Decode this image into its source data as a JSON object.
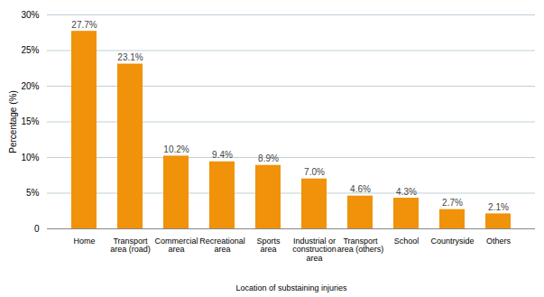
{
  "chart_data": {
    "type": "bar",
    "categories": [
      "Home",
      "Transport\narea (road)",
      "Commercial\narea",
      "Recreational\narea",
      "Sports\narea",
      "Industrial or\nconstruction\narea",
      "Transport\narea (others)",
      "School",
      "Countryside",
      "Others"
    ],
    "values": [
      27.7,
      23.1,
      10.2,
      9.4,
      8.9,
      7.0,
      4.6,
      4.3,
      2.7,
      2.1
    ],
    "value_labels": [
      "27.7%",
      "23.1%",
      "10.2%",
      "9.4%",
      "8.9%",
      "7.0%",
      "4.6%",
      "4.3%",
      "2.7%",
      "2.1%"
    ],
    "data_labels": true,
    "color": "#F0920A",
    "xlabel": "Location of substaining injuries",
    "ylabel": "Percentage (%)",
    "ylim": [
      0,
      30
    ],
    "yticks": [
      0,
      {
        "value": 5,
        "label": "5%"
      },
      {
        "value": 10,
        "label": "10%"
      },
      {
        "value": 15,
        "label": "15%"
      },
      {
        "value": 20,
        "label": "20%"
      },
      {
        "value": 25,
        "label": "25%"
      },
      {
        "value": 30,
        "label": "30%"
      }
    ],
    "grid": true
  }
}
